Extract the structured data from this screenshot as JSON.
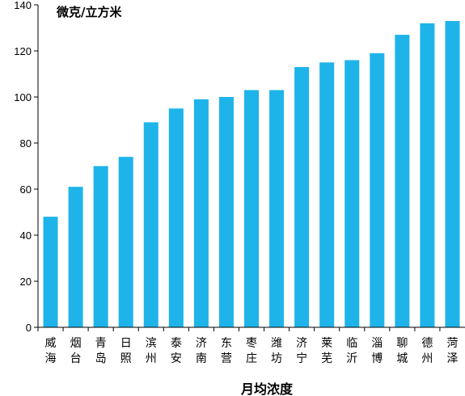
{
  "chart_data": {
    "type": "bar",
    "categories": [
      "威海",
      "烟台",
      "青岛",
      "日照",
      "滨州",
      "泰安",
      "济南",
      "东营",
      "枣庄",
      "潍坊",
      "济宁",
      "莱芜",
      "临沂",
      "淄博",
      "聊城",
      "德州",
      "菏泽"
    ],
    "values": [
      48,
      61,
      70,
      74,
      89,
      95,
      99,
      100,
      103,
      103,
      113,
      115,
      116,
      119,
      127,
      132,
      133
    ],
    "unit_label": "微克/立方米",
    "xlabel": "月均浓度",
    "ylabel": "",
    "ylim": [
      0,
      140
    ],
    "yticks": [
      0,
      20,
      40,
      60,
      80,
      100,
      120,
      140
    ],
    "grid": false,
    "legend": "none",
    "colors": {
      "bar": "#1EB4EA",
      "axis": "#000000"
    }
  }
}
